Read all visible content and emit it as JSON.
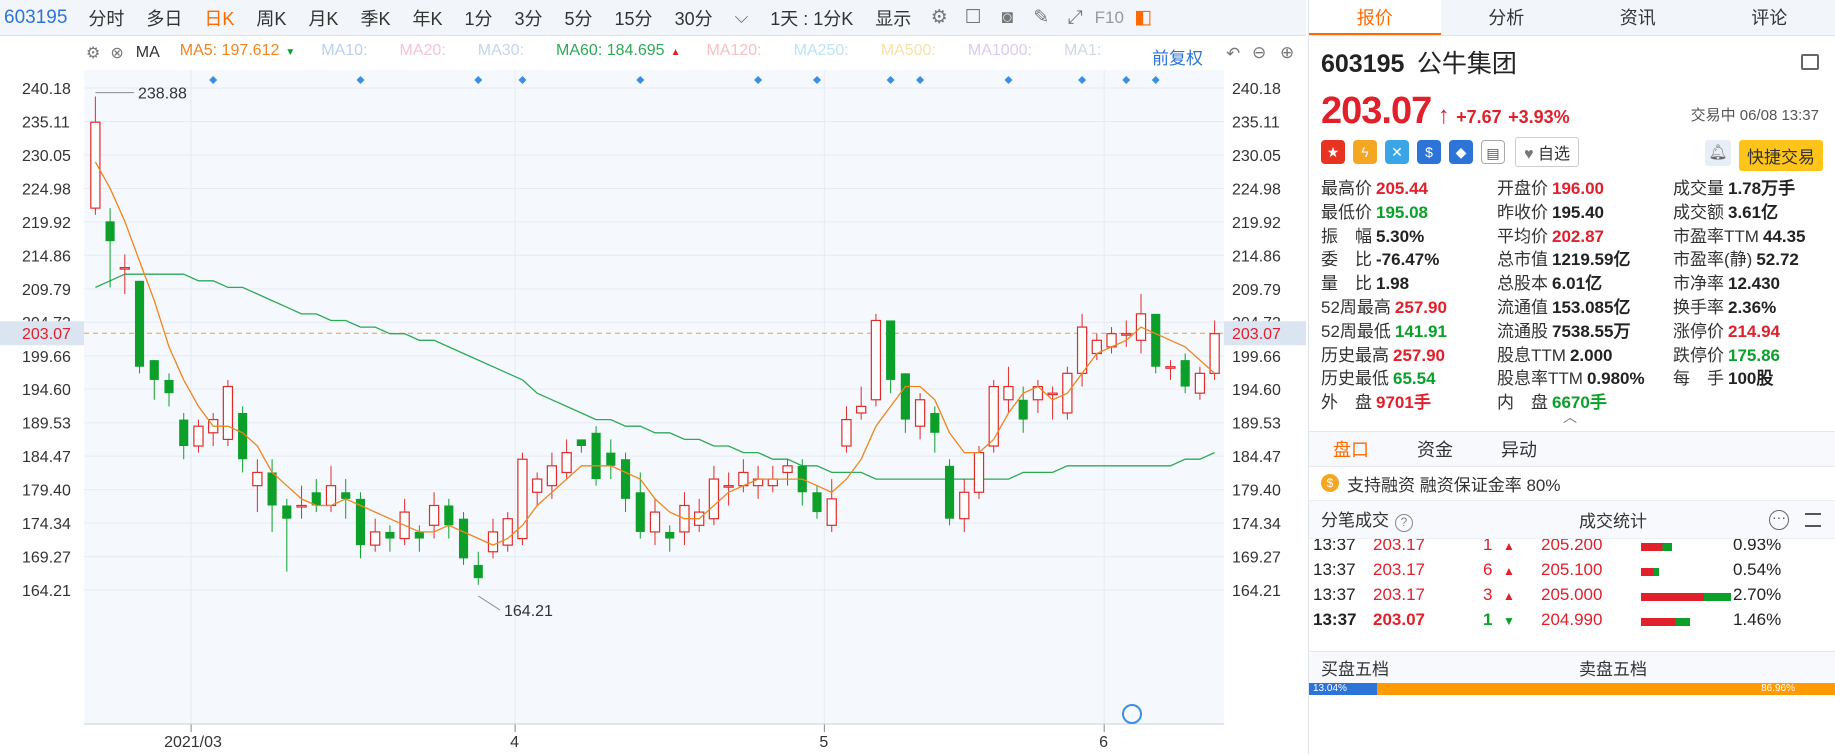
{
  "toolbar": {
    "code": "603195",
    "periods": [
      "分时",
      "多日",
      "日K",
      "周K",
      "月K",
      "季K",
      "年K",
      "1分",
      "3分",
      "5分",
      "15分",
      "30分"
    ],
    "active_period": "日K",
    "more_dropdown": "⌵",
    "range": "1天 : 1分K",
    "display": "显示",
    "f10": "F10"
  },
  "ma_bar": {
    "label": "MA",
    "items": [
      {
        "text": "MA5: 197.612",
        "color": "#f0851f"
      },
      {
        "text": "MA10:",
        "color": "#b9cff0"
      },
      {
        "text": "MA20:",
        "color": "#f3c3d8"
      },
      {
        "text": "MA30:",
        "color": "#c5d5ea"
      },
      {
        "text": "MA60: 184.695",
        "color": "#2daa55"
      },
      {
        "text": "MA120:",
        "color": "#f5c1c1"
      },
      {
        "text": "MA250:",
        "color": "#bde3f3"
      },
      {
        "text": "MA500:",
        "color": "#f6e1a8"
      },
      {
        "text": "MA1000:",
        "color": "#d8ccef"
      },
      {
        "text": "MA1:",
        "color": "#d0d8e2"
      }
    ],
    "adjust": "前复权"
  },
  "chart_data": {
    "type": "candlestick",
    "y_ticks": [
      "240.18",
      "235.11",
      "230.05",
      "224.98",
      "219.92",
      "214.86",
      "209.79",
      "204.73",
      "199.66",
      "194.60",
      "189.53",
      "184.47",
      "179.40",
      "174.34",
      "169.27",
      "164.21"
    ],
    "ylim": [
      164.21,
      240.18
    ],
    "x_labels": [
      {
        "text": "2021/03",
        "index": 7
      },
      {
        "text": "4",
        "index": 29
      },
      {
        "text": "5",
        "index": 50
      },
      {
        "text": "6",
        "index": 69
      }
    ],
    "current_price": "203.07",
    "max_label": "238.88",
    "min_label": "164.21",
    "candles": [
      [
        222,
        235,
        238.9,
        221
      ],
      [
        220,
        217,
        222,
        210
      ],
      [
        213,
        213,
        215,
        209
      ],
      [
        211,
        198,
        211,
        197
      ],
      [
        199,
        196,
        199,
        193
      ],
      [
        196,
        194,
        197,
        192
      ],
      [
        190,
        186,
        191,
        184
      ],
      [
        186,
        189,
        190,
        185
      ],
      [
        188,
        190,
        191,
        186
      ],
      [
        187,
        195,
        196,
        186
      ],
      [
        191,
        184,
        192,
        182
      ],
      [
        180,
        182,
        184,
        176
      ],
      [
        182,
        177,
        184,
        173
      ],
      [
        177,
        175,
        178,
        167
      ],
      [
        177,
        177,
        180,
        175
      ],
      [
        179,
        177,
        181,
        176
      ],
      [
        177,
        180,
        183,
        176
      ],
      [
        179,
        178,
        181,
        175
      ],
      [
        178,
        171,
        179,
        169
      ],
      [
        171,
        173,
        175,
        170
      ],
      [
        173,
        172,
        174,
        170
      ],
      [
        172,
        176,
        178,
        171
      ],
      [
        173,
        172,
        174,
        170
      ],
      [
        174,
        177,
        179,
        172
      ],
      [
        177,
        174,
        178,
        172
      ],
      [
        175,
        169,
        176,
        168
      ],
      [
        168,
        166,
        170,
        165
      ],
      [
        170,
        173,
        175,
        169
      ],
      [
        171,
        175,
        176,
        170
      ],
      [
        172,
        184,
        185,
        171
      ],
      [
        179,
        181,
        182,
        177
      ],
      [
        180,
        183,
        185,
        178
      ],
      [
        182,
        185,
        187,
        181
      ],
      [
        187,
        186,
        187,
        185
      ],
      [
        188,
        181,
        189,
        180
      ],
      [
        185,
        183,
        187,
        181
      ],
      [
        184,
        178,
        185,
        176
      ],
      [
        179,
        173,
        182,
        172
      ],
      [
        173,
        176,
        178,
        171
      ],
      [
        173,
        172,
        174,
        170
      ],
      [
        173,
        177,
        179,
        171
      ],
      [
        174,
        176,
        178,
        173
      ],
      [
        175,
        181,
        183,
        174
      ],
      [
        180,
        180,
        182,
        177
      ],
      [
        180,
        182,
        184,
        179
      ],
      [
        180,
        181,
        183,
        178
      ],
      [
        180,
        181,
        183,
        179
      ],
      [
        182,
        183,
        184,
        180
      ],
      [
        183,
        179,
        184,
        177
      ],
      [
        179,
        176,
        180,
        175
      ],
      [
        174,
        178,
        181,
        173
      ],
      [
        186,
        190,
        192,
        185
      ],
      [
        191,
        192,
        195,
        190
      ],
      [
        193,
        205,
        206,
        192
      ],
      [
        205,
        196,
        205,
        194
      ],
      [
        197,
        190,
        197,
        188
      ],
      [
        189,
        193,
        194,
        187
      ],
      [
        191,
        188,
        192,
        185
      ],
      [
        183,
        175,
        184,
        174
      ],
      [
        175,
        179,
        181,
        173
      ],
      [
        179,
        185,
        186,
        178
      ],
      [
        186,
        195,
        196,
        185
      ],
      [
        193,
        195,
        198,
        191
      ],
      [
        193,
        190,
        195,
        188
      ],
      [
        193,
        195,
        196,
        191
      ],
      [
        194,
        194,
        195,
        190
      ],
      [
        191,
        197,
        198,
        190
      ],
      [
        197,
        204,
        206,
        195
      ],
      [
        200,
        202,
        203,
        199
      ],
      [
        201,
        203,
        204,
        200
      ],
      [
        203,
        203,
        205,
        201
      ],
      [
        202,
        206,
        209,
        200
      ],
      [
        206,
        198,
        206,
        197
      ],
      [
        198,
        198,
        199,
        196
      ],
      [
        199,
        195,
        200,
        194
      ],
      [
        194,
        197,
        198,
        193
      ],
      [
        197,
        203,
        205,
        196
      ]
    ],
    "ma5": [
      229,
      225,
      220,
      214,
      208,
      201,
      196,
      192,
      189,
      189,
      188,
      186,
      182,
      180,
      178,
      177,
      177,
      178,
      177,
      176,
      175,
      174,
      173,
      173,
      174,
      173,
      172,
      171,
      172,
      174,
      177,
      179,
      181,
      183,
      183,
      183,
      182,
      181,
      178,
      176,
      175,
      175,
      177,
      179,
      180,
      181,
      181,
      181,
      181,
      180,
      179,
      181,
      184,
      189,
      192,
      195,
      195,
      193,
      188,
      185,
      185,
      187,
      191,
      194,
      195,
      193,
      194,
      197,
      200,
      201,
      202,
      204,
      203,
      202,
      201,
      199,
      197
    ],
    "ma60": [
      210,
      211,
      212,
      212,
      212,
      212,
      212,
      211,
      211,
      210,
      210,
      209,
      208,
      207,
      206,
      206,
      205,
      205,
      204,
      204,
      203,
      203,
      202,
      202,
      201,
      200,
      199,
      198,
      197,
      196,
      194,
      193,
      192,
      191,
      190,
      190,
      189,
      189,
      188,
      188,
      187,
      187,
      186,
      186,
      185,
      185,
      184,
      184,
      183,
      183,
      182,
      182,
      182,
      181,
      181,
      181,
      181,
      181,
      181,
      181,
      181,
      181,
      181,
      182,
      182,
      182,
      183,
      183,
      183,
      183,
      183,
      183,
      183,
      183,
      184,
      184,
      185
    ]
  },
  "stock": {
    "code": "603195",
    "name": "公牛集团",
    "price": "203.07",
    "arrow": "↑",
    "change": "+7.67",
    "change_pct": "+3.93%",
    "status": "交易中 06/08 13:37",
    "zixuan": "自选",
    "quick_trade": "快捷交易"
  },
  "right_tabs": [
    "报价",
    "分析",
    "资讯",
    "评论"
  ],
  "quote": [
    {
      "k": "最高价",
      "v": "205.44",
      "c": "red"
    },
    {
      "k": "开盘价",
      "v": "196.00",
      "c": "red"
    },
    {
      "k": "成交量",
      "v": "1.78万手",
      "c": "blk"
    },
    {
      "k": "最低价",
      "v": "195.08",
      "c": "green"
    },
    {
      "k": "昨收价",
      "v": "195.40",
      "c": "blk"
    },
    {
      "k": "成交额",
      "v": "3.61亿",
      "c": "blk"
    },
    {
      "k": "振　幅",
      "v": "5.30%",
      "c": "blk"
    },
    {
      "k": "平均价",
      "v": "202.87",
      "c": "red"
    },
    {
      "k": "市盈率TTM",
      "v": "44.35",
      "c": "blk"
    },
    {
      "k": "委　比",
      "v": "-76.47%",
      "c": "blk"
    },
    {
      "k": "总市值",
      "v": "1219.59亿",
      "c": "blk"
    },
    {
      "k": "市盈率(静)",
      "v": "52.72",
      "c": "blk"
    },
    {
      "k": "量　比",
      "v": "1.98",
      "c": "blk"
    },
    {
      "k": "总股本",
      "v": "6.01亿",
      "c": "blk"
    },
    {
      "k": "市净率",
      "v": "12.430",
      "c": "blk"
    },
    {
      "k": "52周最高",
      "v": "257.90",
      "c": "red"
    },
    {
      "k": "流通值",
      "v": "153.085亿",
      "c": "blk"
    },
    {
      "k": "换手率",
      "v": "2.36%",
      "c": "blk"
    },
    {
      "k": "52周最低",
      "v": "141.91",
      "c": "green"
    },
    {
      "k": "流通股",
      "v": "7538.55万",
      "c": "blk"
    },
    {
      "k": "涨停价",
      "v": "214.94",
      "c": "red"
    },
    {
      "k": "历史最高",
      "v": "257.90",
      "c": "red"
    },
    {
      "k": "股息TTM",
      "v": "2.000",
      "c": "blk"
    },
    {
      "k": "跌停价",
      "v": "175.86",
      "c": "green"
    },
    {
      "k": "历史最低",
      "v": "65.54",
      "c": "green"
    },
    {
      "k": "股息率TTM",
      "v": "0.980%",
      "c": "blk"
    },
    {
      "k": "每　手",
      "v": "100股",
      "c": "blk"
    },
    {
      "k": "外　盘",
      "v": "9701手",
      "c": "red"
    },
    {
      "k": "内　盘",
      "v": "6670手",
      "c": "green"
    }
  ],
  "tabs2": [
    "盘口",
    "资金",
    "异动"
  ],
  "margin_text": "支持融资 融资保证金率 80%",
  "ticks_title": "分笔成交",
  "stats_title": "成交统计",
  "ticks": [
    {
      "time": "13:37",
      "price": "203.17",
      "vol": "1",
      "dir": "▲"
    },
    {
      "time": "13:37",
      "price": "203.17",
      "vol": "6",
      "dir": "▲"
    },
    {
      "time": "13:37",
      "price": "203.17",
      "vol": "3",
      "dir": "▲"
    },
    {
      "time": "13:37",
      "price": "203.07",
      "vol": "1",
      "dir": "▼"
    }
  ],
  "stats": [
    {
      "price": "205.200",
      "pct": "0.93%"
    },
    {
      "price": "205.100",
      "pct": "0.54%"
    },
    {
      "price": "205.000",
      "pct": "2.70%"
    },
    {
      "price": "204.990",
      "pct": "1.46%"
    }
  ],
  "bottom": {
    "buy": "买盘五档",
    "sell": "卖盘五档",
    "buy_pct": "13.04%",
    "sell_pct": "86.96%"
  }
}
